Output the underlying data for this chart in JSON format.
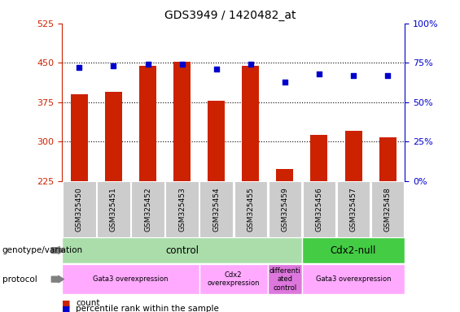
{
  "title": "GDS3949 / 1420482_at",
  "samples": [
    "GSM325450",
    "GSM325451",
    "GSM325452",
    "GSM325453",
    "GSM325454",
    "GSM325455",
    "GSM325459",
    "GSM325456",
    "GSM325457",
    "GSM325458"
  ],
  "counts": [
    390,
    395,
    445,
    452,
    378,
    445,
    248,
    312,
    320,
    308
  ],
  "percentiles": [
    72,
    73,
    74,
    74,
    71,
    74,
    63,
    68,
    67,
    67
  ],
  "ylim_left": [
    225,
    525
  ],
  "ylim_right": [
    0,
    100
  ],
  "yticks_left": [
    225,
    300,
    375,
    450,
    525
  ],
  "yticks_right": [
    0,
    25,
    50,
    75,
    100
  ],
  "bar_color": "#cc2200",
  "dot_color": "#0000cc",
  "sample_bg_color": "#cccccc",
  "genotype_groups": [
    {
      "label": "control",
      "start": 0,
      "end": 7,
      "color": "#aaddaa"
    },
    {
      "label": "Cdx2-null",
      "start": 7,
      "end": 10,
      "color": "#44cc44"
    }
  ],
  "protocol_groups": [
    {
      "label": "Gata3 overexpression",
      "start": 0,
      "end": 4,
      "color": "#ffaaff"
    },
    {
      "label": "Cdx2\noverexpression",
      "start": 4,
      "end": 6,
      "color": "#ffaaff"
    },
    {
      "label": "differenti\nated\ncontrol",
      "start": 6,
      "end": 7,
      "color": "#dd77dd"
    },
    {
      "label": "Gata3 overexpression",
      "start": 7,
      "end": 10,
      "color": "#ffaaff"
    }
  ],
  "row_label_genotype": "genotype/variation",
  "row_label_protocol": "protocol",
  "title_fontsize": 10,
  "tick_fontsize": 8,
  "label_fontsize": 8.5,
  "sample_fontsize": 6.5
}
